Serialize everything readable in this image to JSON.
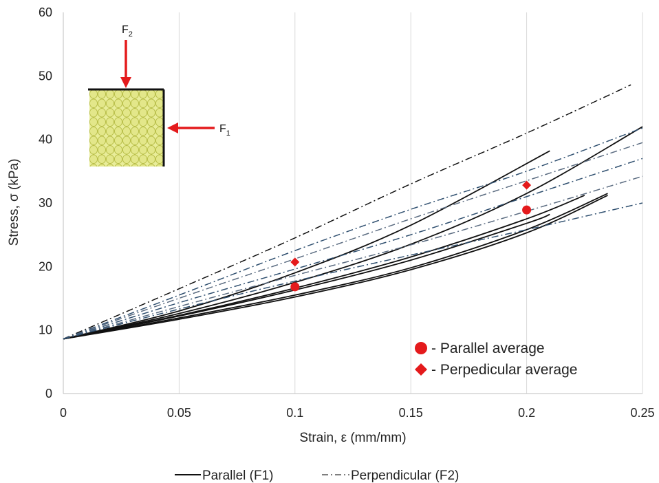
{
  "chart_data": {
    "type": "line",
    "xlabel": "Strain, ε (mm/mm)",
    "ylabel": "Stress, σ (kPa)",
    "xlim": [
      0,
      0.25
    ],
    "ylim": [
      0,
      60
    ],
    "x_ticks": [
      "0",
      "0.05",
      "0.1",
      "0.15",
      "0.2",
      "0.25"
    ],
    "y_ticks": [
      "0",
      "10",
      "20",
      "30",
      "40",
      "50",
      "60"
    ],
    "grid": "vertical",
    "series": [
      {
        "name": "Parallel (F1)",
        "style": "solid",
        "color": "#111111",
        "curves": [
          {
            "x": [
              0,
              0.05,
              0.1,
              0.15,
              0.21
            ],
            "y": [
              8.6,
              13.0,
              19.0,
              26.5,
              38.2
            ]
          },
          {
            "x": [
              0,
              0.05,
              0.1,
              0.15,
              0.2,
              0.25
            ],
            "y": [
              8.6,
              12.6,
              17.5,
              23.5,
              31.5,
              42.0
            ]
          },
          {
            "x": [
              0,
              0.05,
              0.1,
              0.15,
              0.2,
              0.225
            ],
            "y": [
              8.6,
              12.3,
              16.6,
              21.5,
              27.5,
              31.2
            ]
          },
          {
            "x": [
              0,
              0.05,
              0.1,
              0.15,
              0.2,
              0.21
            ],
            "y": [
              8.6,
              12.2,
              16.3,
              21.0,
              26.8,
              28.2
            ]
          },
          {
            "x": [
              0,
              0.05,
              0.1,
              0.15,
              0.2,
              0.235
            ],
            "y": [
              8.6,
              11.9,
              15.5,
              19.8,
              25.8,
              31.5
            ]
          },
          {
            "x": [
              0,
              0.05,
              0.1,
              0.15,
              0.2,
              0.235
            ],
            "y": [
              8.6,
              11.7,
              15.2,
              19.5,
              25.3,
              31.2
            ]
          }
        ]
      },
      {
        "name": "Perpendicular (F2)",
        "style": "dashdot",
        "curves": [
          {
            "x": [
              0,
              0.05,
              0.1,
              0.15,
              0.2,
              0.245
            ],
            "y": [
              8.6,
              16.5,
              24.5,
              33.0,
              41.0,
              48.6
            ],
            "color": "#111111"
          },
          {
            "x": [
              0,
              0.05,
              0.1,
              0.15,
              0.2,
              0.25
            ],
            "y": [
              8.6,
              15.5,
              22.5,
              29.0,
              35.0,
              41.8
            ],
            "color": "#2f4f6f"
          },
          {
            "x": [
              0,
              0.05,
              0.1,
              0.15,
              0.2,
              0.25
            ],
            "y": [
              8.6,
              15.0,
              21.2,
              27.5,
              33.5,
              39.5
            ],
            "color": "#5a6b80"
          },
          {
            "x": [
              0,
              0.05,
              0.1,
              0.15,
              0.2,
              0.25
            ],
            "y": [
              8.6,
              14.3,
              19.6,
              25.0,
              31.0,
              37.0
            ],
            "color": "#2f4f6f"
          },
          {
            "x": [
              0,
              0.05,
              0.1,
              0.15,
              0.2,
              0.25
            ],
            "y": [
              8.6,
              13.7,
              18.6,
              23.4,
              28.7,
              34.2
            ],
            "color": "#5a6b80"
          },
          {
            "x": [
              0,
              0.05,
              0.1,
              0.15,
              0.2,
              0.25
            ],
            "y": [
              8.6,
              13.3,
              17.7,
              21.8,
              25.8,
              30.0
            ],
            "color": "#2f4f6f"
          }
        ]
      }
    ],
    "averages": [
      {
        "name": "Parallel average",
        "marker": "circle",
        "color": "#e41a1c",
        "points": [
          {
            "x": 0.1,
            "y": 16.8
          },
          {
            "x": 0.2,
            "y": 28.9
          }
        ]
      },
      {
        "name": "Perpendicular average",
        "marker": "diamond",
        "color": "#e41a1c",
        "points": [
          {
            "x": 0.1,
            "y": 20.7
          },
          {
            "x": 0.2,
            "y": 32.8
          }
        ]
      }
    ],
    "legend_inner": [
      "- Parallel average",
      "- Perpedicular average"
    ],
    "legend_bottom": [
      "Parallel (F1)",
      "Perpendicular (F2)"
    ],
    "inset": {
      "force_top": "F",
      "force_top_sub": "2",
      "force_side": "F",
      "force_side_sub": "1"
    }
  }
}
